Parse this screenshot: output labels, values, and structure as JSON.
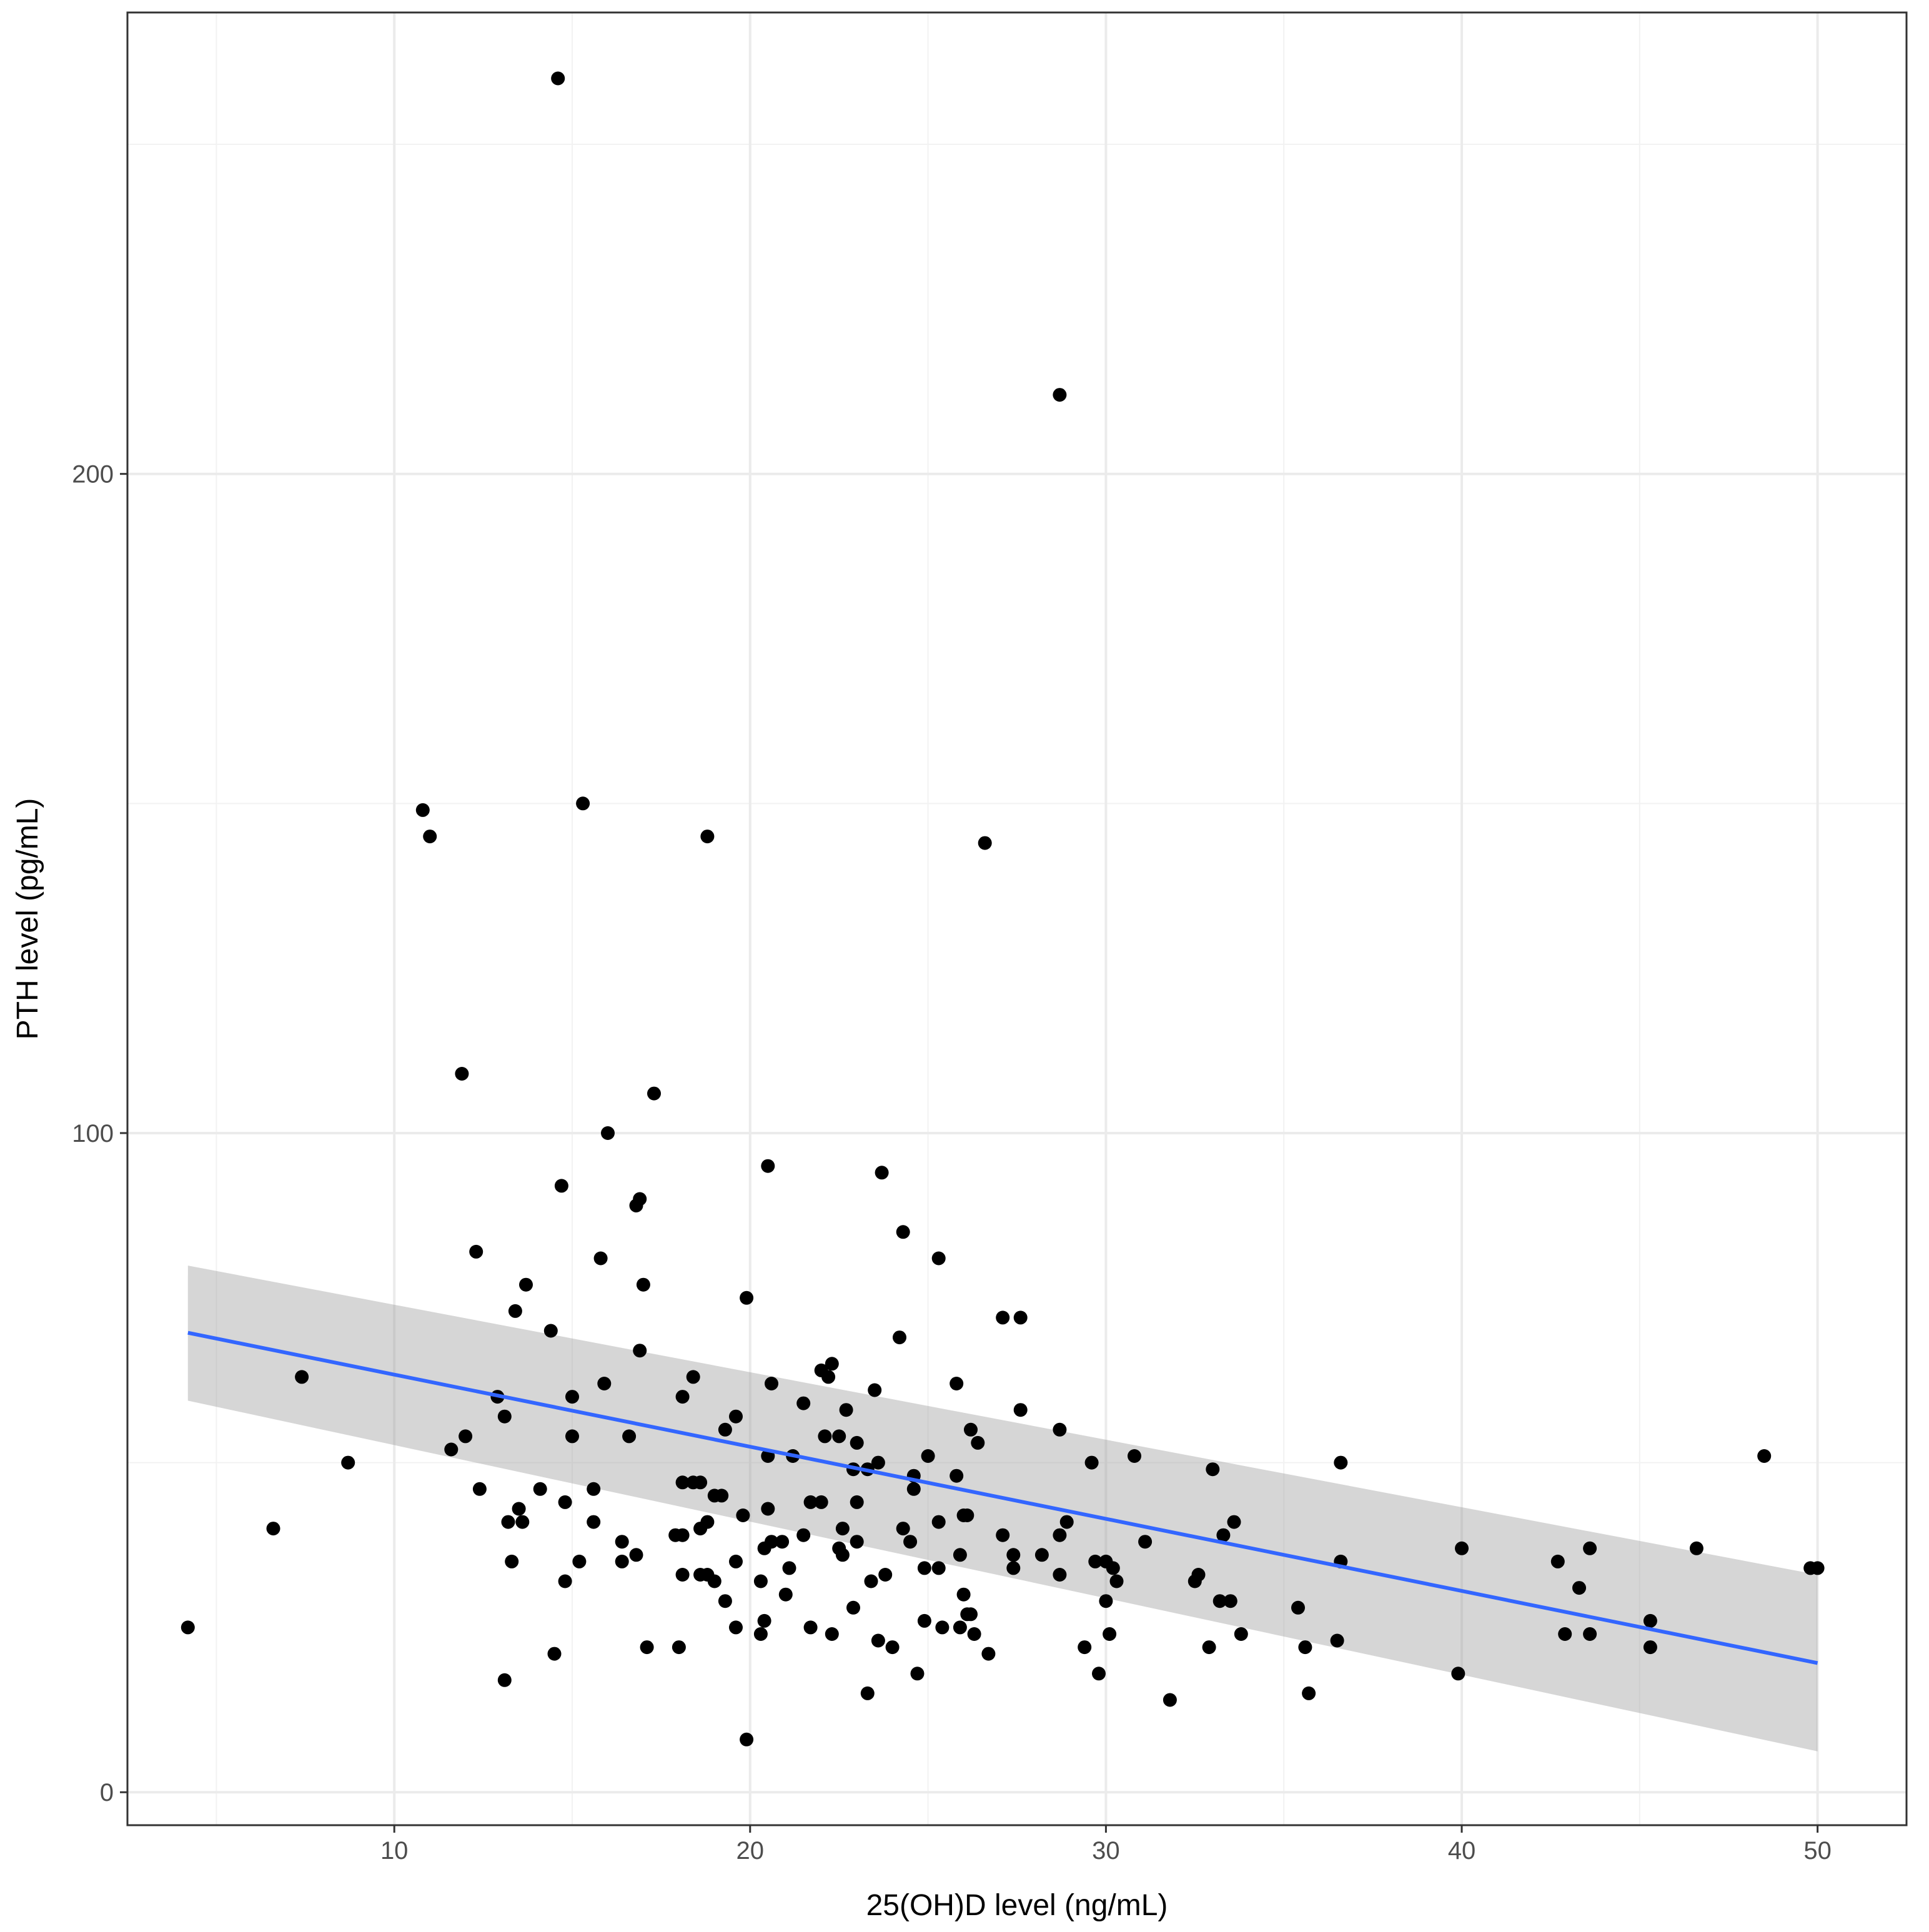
{
  "chart_data": {
    "type": "scatter",
    "title": "",
    "xlabel": "25(OH)D level (ng/mL)",
    "ylabel": "PTH level (pg/mL)",
    "xlim": [
      2.5,
      52.5
    ],
    "ylim": [
      -5,
      270
    ],
    "x_ticks": [
      10,
      20,
      30,
      40,
      50
    ],
    "y_ticks": [
      0,
      100,
      200
    ],
    "x_tick_labels": [
      "10",
      "20",
      "30",
      "40",
      "50"
    ],
    "y_tick_labels": [
      "0",
      "100",
      "200"
    ],
    "grid": true,
    "colors": {
      "point": "#000000",
      "fit_line": "#3366FF",
      "ci_band": "#999999",
      "grid_major": "#ebebeb",
      "grid_minor": "#f2f2f2",
      "panel_border": "#333333",
      "tick_text": "#4d4d4d"
    },
    "fit": {
      "method": "lm",
      "x": [
        4.2,
        50
      ],
      "y": [
        69.7,
        19.6
      ],
      "ci_lower": [
        59.4,
        6.2
      ],
      "ci_upper": [
        79.9,
        33.0
      ]
    },
    "points": [
      [
        14.6,
        260
      ],
      [
        28.7,
        212
      ],
      [
        15.3,
        150
      ],
      [
        10.8,
        149
      ],
      [
        11.0,
        145
      ],
      [
        18.8,
        145
      ],
      [
        26.6,
        144
      ],
      [
        11.9,
        109
      ],
      [
        17.3,
        106
      ],
      [
        16.0,
        100
      ],
      [
        20.5,
        95
      ],
      [
        23.7,
        94
      ],
      [
        14.7,
        92
      ],
      [
        16.9,
        90
      ],
      [
        16.8,
        89
      ],
      [
        24.3,
        85
      ],
      [
        12.3,
        82
      ],
      [
        15.8,
        81
      ],
      [
        25.3,
        81
      ],
      [
        13.7,
        77
      ],
      [
        17.0,
        77
      ],
      [
        19.9,
        75
      ],
      [
        13.4,
        73
      ],
      [
        27.1,
        72
      ],
      [
        27.6,
        72
      ],
      [
        14.4,
        70
      ],
      [
        24.2,
        69
      ],
      [
        16.9,
        67
      ],
      [
        7.4,
        63
      ],
      [
        18.4,
        63
      ],
      [
        22.3,
        65
      ],
      [
        22.0,
        64
      ],
      [
        22.2,
        63
      ],
      [
        20.6,
        62
      ],
      [
        25.8,
        62
      ],
      [
        15.9,
        62
      ],
      [
        12.9,
        60
      ],
      [
        15.0,
        60
      ],
      [
        18.1,
        60
      ],
      [
        21.5,
        59
      ],
      [
        23.5,
        61
      ],
      [
        22.7,
        58
      ],
      [
        19.6,
        57
      ],
      [
        13.1,
        57
      ],
      [
        27.6,
        58
      ],
      [
        19.3,
        55
      ],
      [
        15.0,
        54
      ],
      [
        16.6,
        54
      ],
      [
        12.0,
        54
      ],
      [
        22.1,
        54
      ],
      [
        22.5,
        54
      ],
      [
        23.0,
        53
      ],
      [
        26.2,
        55
      ],
      [
        26.4,
        53
      ],
      [
        28.7,
        55
      ],
      [
        11.6,
        52
      ],
      [
        20.5,
        51
      ],
      [
        21.2,
        51
      ],
      [
        23.6,
        50
      ],
      [
        25.0,
        51
      ],
      [
        30.8,
        51
      ],
      [
        48.5,
        51
      ],
      [
        8.7,
        50
      ],
      [
        22.9,
        49
      ],
      [
        23.3,
        49
      ],
      [
        24.6,
        48
      ],
      [
        25.8,
        48
      ],
      [
        29.6,
        50
      ],
      [
        33.0,
        49
      ],
      [
        36.6,
        50
      ],
      [
        18.1,
        47
      ],
      [
        18.6,
        47
      ],
      [
        14.1,
        46
      ],
      [
        15.6,
        46
      ],
      [
        12.4,
        46
      ],
      [
        18.4,
        47
      ],
      [
        19.0,
        45
      ],
      [
        19.2,
        45
      ],
      [
        14.8,
        44
      ],
      [
        21.7,
        44
      ],
      [
        22.0,
        44
      ],
      [
        23.0,
        44
      ],
      [
        24.6,
        46
      ],
      [
        26.1,
        42
      ],
      [
        26.0,
        42
      ],
      [
        28.9,
        41
      ],
      [
        13.5,
        43
      ],
      [
        20.5,
        43
      ],
      [
        19.8,
        42
      ],
      [
        18.8,
        41
      ],
      [
        18.6,
        40
      ],
      [
        13.6,
        41
      ],
      [
        13.2,
        41
      ],
      [
        15.6,
        41
      ],
      [
        22.6,
        40
      ],
      [
        25.3,
        41
      ],
      [
        33.6,
        41
      ],
      [
        6.6,
        40
      ],
      [
        17.9,
        39
      ],
      [
        18.1,
        39
      ],
      [
        16.4,
        38
      ],
      [
        20.9,
        38
      ],
      [
        20.6,
        38
      ],
      [
        21.5,
        39
      ],
      [
        23.0,
        38
      ],
      [
        24.5,
        38
      ],
      [
        24.3,
        40
      ],
      [
        22.5,
        37
      ],
      [
        22.6,
        36
      ],
      [
        27.1,
        39
      ],
      [
        28.7,
        39
      ],
      [
        33.3,
        39
      ],
      [
        31.1,
        38
      ],
      [
        20.4,
        37
      ],
      [
        25.9,
        36
      ],
      [
        27.4,
        36
      ],
      [
        28.2,
        36
      ],
      [
        16.8,
        36
      ],
      [
        40.0,
        37
      ],
      [
        43.6,
        37
      ],
      [
        46.6,
        37
      ],
      [
        19.6,
        35
      ],
      [
        29.7,
        35
      ],
      [
        30.0,
        35
      ],
      [
        42.7,
        35
      ],
      [
        13.3,
        35
      ],
      [
        15.2,
        35
      ],
      [
        16.4,
        35
      ],
      [
        21.1,
        34
      ],
      [
        23.8,
        33
      ],
      [
        24.9,
        34
      ],
      [
        25.3,
        34
      ],
      [
        27.4,
        34
      ],
      [
        28.7,
        33
      ],
      [
        30.2,
        34
      ],
      [
        32.6,
        33
      ],
      [
        36.6,
        35
      ],
      [
        49.8,
        34
      ],
      [
        50.0,
        34
      ],
      [
        14.8,
        32
      ],
      [
        18.1,
        33
      ],
      [
        18.6,
        33
      ],
      [
        18.8,
        33
      ],
      [
        19.0,
        32
      ],
      [
        20.3,
        32
      ],
      [
        23.4,
        32
      ],
      [
        32.5,
        32
      ],
      [
        43.3,
        31
      ],
      [
        30.3,
        32
      ],
      [
        21.0,
        30
      ],
      [
        26.0,
        30
      ],
      [
        30.0,
        29
      ],
      [
        33.2,
        29
      ],
      [
        33.5,
        29
      ],
      [
        19.3,
        29
      ],
      [
        22.9,
        28
      ],
      [
        35.4,
        28
      ],
      [
        24.9,
        26
      ],
      [
        26.1,
        27
      ],
      [
        26.2,
        27
      ],
      [
        45.3,
        26
      ],
      [
        20.4,
        26
      ],
      [
        19.6,
        25
      ],
      [
        21.7,
        25
      ],
      [
        25.4,
        25
      ],
      [
        25.9,
        25
      ],
      [
        4.2,
        25
      ],
      [
        22.3,
        24
      ],
      [
        30.1,
        24
      ],
      [
        20.3,
        24
      ],
      [
        23.6,
        23
      ],
      [
        33.8,
        24
      ],
      [
        36.5,
        23
      ],
      [
        42.9,
        24
      ],
      [
        43.6,
        24
      ],
      [
        17.1,
        22
      ],
      [
        18.0,
        22
      ],
      [
        14.5,
        21
      ],
      [
        24.0,
        22
      ],
      [
        26.3,
        24
      ],
      [
        26.7,
        21
      ],
      [
        29.4,
        22
      ],
      [
        32.9,
        22
      ],
      [
        45.3,
        22
      ],
      [
        35.6,
        22
      ],
      [
        13.1,
        17
      ],
      [
        24.7,
        18
      ],
      [
        29.8,
        18
      ],
      [
        39.9,
        18
      ],
      [
        23.3,
        15
      ],
      [
        35.7,
        15
      ],
      [
        31.8,
        14
      ],
      [
        19.9,
        8
      ]
    ]
  }
}
